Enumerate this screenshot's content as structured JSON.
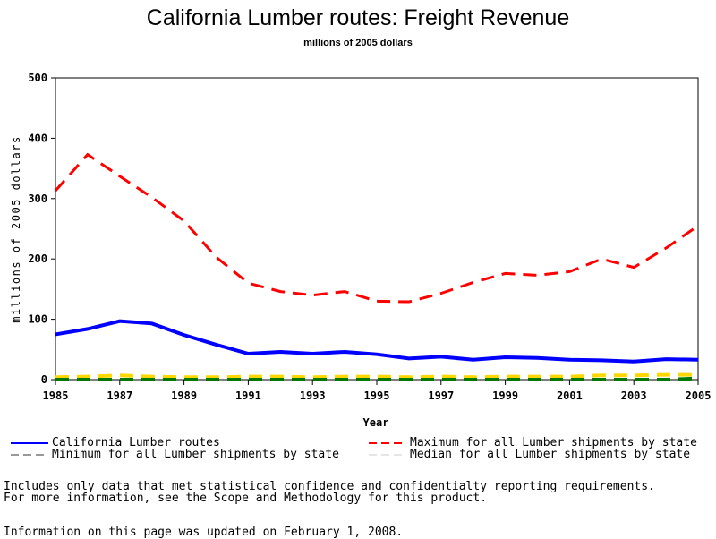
{
  "chart_data": {
    "type": "line",
    "title": "California Lumber routes: Freight Revenue",
    "subtitle": "millions of 2005 dollars",
    "xlabel": "Year",
    "ylabel": "millions of 2005 dollars",
    "xlim": [
      1985,
      2005
    ],
    "ylim": [
      0,
      500
    ],
    "yticks": [
      0,
      100,
      200,
      300,
      400,
      500
    ],
    "xticks": [
      1985,
      1987,
      1989,
      1991,
      1993,
      1995,
      1997,
      1999,
      2001,
      2003,
      2005
    ],
    "grid": false,
    "legend_placement": "bottom",
    "x": [
      1985,
      1986,
      1987,
      1988,
      1989,
      1990,
      1991,
      1992,
      1993,
      1994,
      1995,
      1996,
      1997,
      1998,
      1999,
      2000,
      2001,
      2002,
      2003,
      2004,
      2005
    ],
    "series": [
      {
        "name": "California Lumber routes",
        "color": "#0000ff",
        "dash": "solid",
        "values": [
          75,
          84,
          97,
          93,
          74,
          58,
          43,
          46,
          43,
          46,
          42,
          35,
          38,
          33,
          37,
          36,
          33,
          32,
          30,
          34,
          33
        ]
      },
      {
        "name": "Maximum for all Lumber shipments by state",
        "color": "#ff0000",
        "dash": "dashed",
        "values": [
          313,
          373,
          337,
          302,
          263,
          203,
          160,
          146,
          140,
          146,
          130,
          129,
          143,
          161,
          176,
          173,
          179,
          200,
          186,
          218,
          255
        ]
      },
      {
        "name": "Minimum for all Lumber shipments by state",
        "color": "#007700",
        "dash": "dashed",
        "values": [
          0,
          0,
          0,
          0,
          0,
          0,
          0,
          0,
          0,
          0,
          0,
          0,
          0,
          0,
          0,
          0,
          0,
          0,
          0,
          0,
          2
        ]
      },
      {
        "name": "Median for all Lumber shipments by state",
        "color": "#ffd700",
        "dash": "dashed",
        "values": [
          4,
          5,
          7,
          5,
          4,
          4,
          5,
          5,
          4,
          5,
          5,
          4,
          5,
          4,
          5,
          5,
          5,
          7,
          7,
          8,
          8
        ]
      }
    ]
  },
  "notes": {
    "line1": "Includes only data that met statistical confidence and confidentialty reporting requirements.",
    "line2": "For more information, see the Scope and Methodology for this product.",
    "updated": "Information on this page was updated on February 1, 2008."
  }
}
